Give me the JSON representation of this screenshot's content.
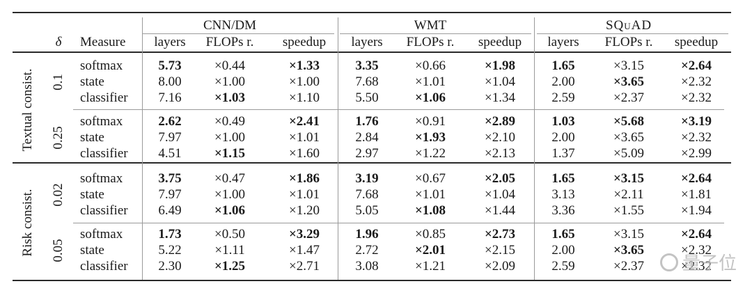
{
  "header": {
    "delta_symbol": "δ",
    "measure_label": "Measure",
    "datasets": [
      {
        "name": "CNN/DM",
        "cols": [
          "layers",
          "FLOPs r.",
          "speedup"
        ]
      },
      {
        "name": "WMT",
        "cols": [
          "layers",
          "FLOPs r.",
          "speedup"
        ]
      },
      {
        "name": "SQuAD",
        "cols": [
          "layers",
          "FLOPs r.",
          "speedup"
        ]
      }
    ]
  },
  "groups": [
    {
      "label": "Textual consist.",
      "subgroups": [
        {
          "delta": "0.1",
          "rows": [
            {
              "measure": "softmax",
              "cells": [
                {
                  "v": "5.73",
                  "b": true
                },
                {
                  "v": "×0.44",
                  "b": false
                },
                {
                  "v": "×1.33",
                  "b": true
                },
                {
                  "v": "3.35",
                  "b": true
                },
                {
                  "v": "×0.66",
                  "b": false
                },
                {
                  "v": "×1.98",
                  "b": true
                },
                {
                  "v": "1.65",
                  "b": true
                },
                {
                  "v": "×3.15",
                  "b": false
                },
                {
                  "v": "×2.64",
                  "b": true
                }
              ]
            },
            {
              "measure": "state",
              "cells": [
                {
                  "v": "8.00",
                  "b": false
                },
                {
                  "v": "×1.00",
                  "b": false
                },
                {
                  "v": "×1.00",
                  "b": false
                },
                {
                  "v": "7.68",
                  "b": false
                },
                {
                  "v": "×1.01",
                  "b": false
                },
                {
                  "v": "×1.04",
                  "b": false
                },
                {
                  "v": "2.00",
                  "b": false
                },
                {
                  "v": "×3.65",
                  "b": true
                },
                {
                  "v": "×2.32",
                  "b": false
                }
              ]
            },
            {
              "measure": "classifier",
              "cells": [
                {
                  "v": "7.16",
                  "b": false
                },
                {
                  "v": "×1.03",
                  "b": true
                },
                {
                  "v": "×1.10",
                  "b": false
                },
                {
                  "v": "5.50",
                  "b": false
                },
                {
                  "v": "×1.06",
                  "b": true
                },
                {
                  "v": "×1.34",
                  "b": false
                },
                {
                  "v": "2.59",
                  "b": false
                },
                {
                  "v": "×2.37",
                  "b": false
                },
                {
                  "v": "×2.32",
                  "b": false
                }
              ]
            }
          ]
        },
        {
          "delta": "0.25",
          "rows": [
            {
              "measure": "softmax",
              "cells": [
                {
                  "v": "2.62",
                  "b": true
                },
                {
                  "v": "×0.49",
                  "b": false
                },
                {
                  "v": "×2.41",
                  "b": true
                },
                {
                  "v": "1.76",
                  "b": true
                },
                {
                  "v": "×0.91",
                  "b": false
                },
                {
                  "v": "×2.89",
                  "b": true
                },
                {
                  "v": "1.03",
                  "b": true
                },
                {
                  "v": "×5.68",
                  "b": true
                },
                {
                  "v": "×3.19",
                  "b": true
                }
              ]
            },
            {
              "measure": "state",
              "cells": [
                {
                  "v": "7.97",
                  "b": false
                },
                {
                  "v": "×1.00",
                  "b": false
                },
                {
                  "v": "×1.01",
                  "b": false
                },
                {
                  "v": "2.84",
                  "b": false
                },
                {
                  "v": "×1.93",
                  "b": true
                },
                {
                  "v": "×2.10",
                  "b": false
                },
                {
                  "v": "2.00",
                  "b": false
                },
                {
                  "v": "×3.65",
                  "b": false
                },
                {
                  "v": "×2.32",
                  "b": false
                }
              ]
            },
            {
              "measure": "classifier",
              "cells": [
                {
                  "v": "4.51",
                  "b": false
                },
                {
                  "v": "×1.15",
                  "b": true
                },
                {
                  "v": "×1.60",
                  "b": false
                },
                {
                  "v": "2.97",
                  "b": false
                },
                {
                  "v": "×1.22",
                  "b": false
                },
                {
                  "v": "×2.13",
                  "b": false
                },
                {
                  "v": "1.37",
                  "b": false
                },
                {
                  "v": "×5.09",
                  "b": false
                },
                {
                  "v": "×2.99",
                  "b": false
                }
              ]
            }
          ]
        }
      ]
    },
    {
      "label": "Risk consist.",
      "subgroups": [
        {
          "delta": "0.02",
          "rows": [
            {
              "measure": "softmax",
              "cells": [
                {
                  "v": "3.75",
                  "b": true
                },
                {
                  "v": "×0.47",
                  "b": false
                },
                {
                  "v": "×1.86",
                  "b": true
                },
                {
                  "v": "3.19",
                  "b": true
                },
                {
                  "v": "×0.67",
                  "b": false
                },
                {
                  "v": "×2.05",
                  "b": true
                },
                {
                  "v": "1.65",
                  "b": true
                },
                {
                  "v": "×3.15",
                  "b": true
                },
                {
                  "v": "×2.64",
                  "b": true
                }
              ]
            },
            {
              "measure": "state",
              "cells": [
                {
                  "v": "7.97",
                  "b": false
                },
                {
                  "v": "×1.00",
                  "b": false
                },
                {
                  "v": "×1.01",
                  "b": false
                },
                {
                  "v": "7.68",
                  "b": false
                },
                {
                  "v": "×1.01",
                  "b": false
                },
                {
                  "v": "×1.04",
                  "b": false
                },
                {
                  "v": "3.13",
                  "b": false
                },
                {
                  "v": "×2.11",
                  "b": false
                },
                {
                  "v": "×1.81",
                  "b": false
                }
              ]
            },
            {
              "measure": "classifier",
              "cells": [
                {
                  "v": "6.49",
                  "b": false
                },
                {
                  "v": "×1.06",
                  "b": true
                },
                {
                  "v": "×1.20",
                  "b": false
                },
                {
                  "v": "5.05",
                  "b": false
                },
                {
                  "v": "×1.08",
                  "b": true
                },
                {
                  "v": "×1.44",
                  "b": false
                },
                {
                  "v": "3.36",
                  "b": false
                },
                {
                  "v": "×1.55",
                  "b": false
                },
                {
                  "v": "×1.94",
                  "b": false
                }
              ]
            }
          ]
        },
        {
          "delta": "0.05",
          "rows": [
            {
              "measure": "softmax",
              "cells": [
                {
                  "v": "1.73",
                  "b": true
                },
                {
                  "v": "×0.50",
                  "b": false
                },
                {
                  "v": "×3.29",
                  "b": true
                },
                {
                  "v": "1.96",
                  "b": true
                },
                {
                  "v": "×0.85",
                  "b": false
                },
                {
                  "v": "×2.73",
                  "b": true
                },
                {
                  "v": "1.65",
                  "b": true
                },
                {
                  "v": "×3.15",
                  "b": false
                },
                {
                  "v": "×2.64",
                  "b": true
                }
              ]
            },
            {
              "measure": "state",
              "cells": [
                {
                  "v": "5.22",
                  "b": false
                },
                {
                  "v": "×1.11",
                  "b": false
                },
                {
                  "v": "×1.47",
                  "b": false
                },
                {
                  "v": "2.72",
                  "b": false
                },
                {
                  "v": "×2.01",
                  "b": true
                },
                {
                  "v": "×2.15",
                  "b": false
                },
                {
                  "v": "2.00",
                  "b": false
                },
                {
                  "v": "×3.65",
                  "b": true
                },
                {
                  "v": "×2.32",
                  "b": false
                }
              ]
            },
            {
              "measure": "classifier",
              "cells": [
                {
                  "v": "2.30",
                  "b": false
                },
                {
                  "v": "×1.25",
                  "b": true
                },
                {
                  "v": "×2.71",
                  "b": false
                },
                {
                  "v": "3.08",
                  "b": false
                },
                {
                  "v": "×1.21",
                  "b": false
                },
                {
                  "v": "×2.09",
                  "b": false
                },
                {
                  "v": "2.59",
                  "b": false
                },
                {
                  "v": "×2.37",
                  "b": false
                },
                {
                  "v": "×2.32",
                  "b": false
                }
              ]
            }
          ]
        }
      ]
    }
  ],
  "watermark": "量子位"
}
